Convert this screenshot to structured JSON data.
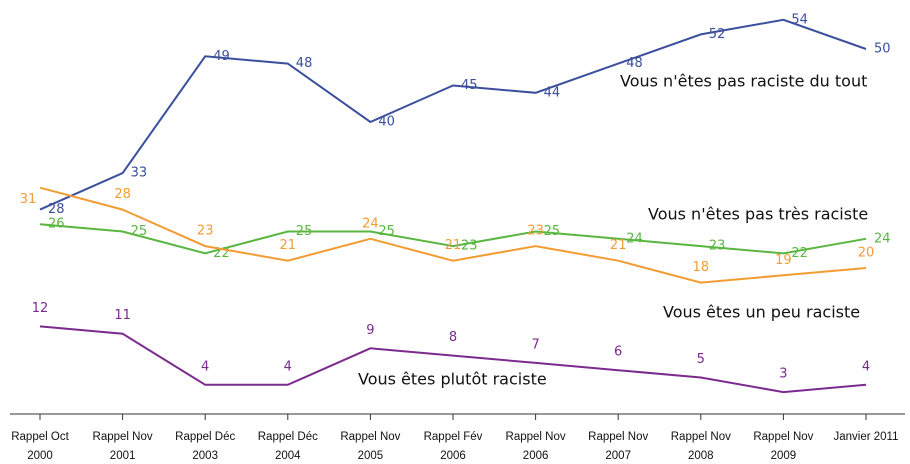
{
  "chart_data": {
    "type": "line",
    "categories": [
      [
        "Rappel Oct",
        "2000"
      ],
      [
        "Rappel Nov",
        "2001"
      ],
      [
        "Rappel Déc",
        "2003"
      ],
      [
        "Rappel Déc",
        "2004"
      ],
      [
        "Rappel Nov",
        "2005"
      ],
      [
        "Rappel Fév",
        "2006"
      ],
      [
        "Rappel Nov",
        "2006"
      ],
      [
        "Rappel Nov",
        "2007"
      ],
      [
        "Rappel Nov",
        "2008"
      ],
      [
        "Rappel Nov",
        "2009"
      ],
      [
        "Janvier 2011"
      ]
    ],
    "series": [
      {
        "name": "Vous n'êtes pas raciste du tout",
        "color": "#3b4f9e",
        "values": [
          28,
          33,
          49,
          48,
          40,
          45,
          44,
          48,
          52,
          54,
          50
        ]
      },
      {
        "name": "Vous n'êtes pas très raciste",
        "color": "#5ab640",
        "values": [
          26,
          25,
          22,
          25,
          25,
          23,
          25,
          24,
          23,
          22,
          24
        ]
      },
      {
        "name": "Vous êtes un peu raciste",
        "color": "#f39c33",
        "values": [
          31,
          28,
          23,
          21,
          24,
          21,
          23,
          21,
          18,
          19,
          20
        ]
      },
      {
        "name": "Vous êtes plutôt raciste",
        "color": "#7b2a8e",
        "values": [
          12,
          11,
          4,
          4,
          9,
          8,
          7,
          6,
          5,
          3,
          4
        ]
      }
    ]
  }
}
